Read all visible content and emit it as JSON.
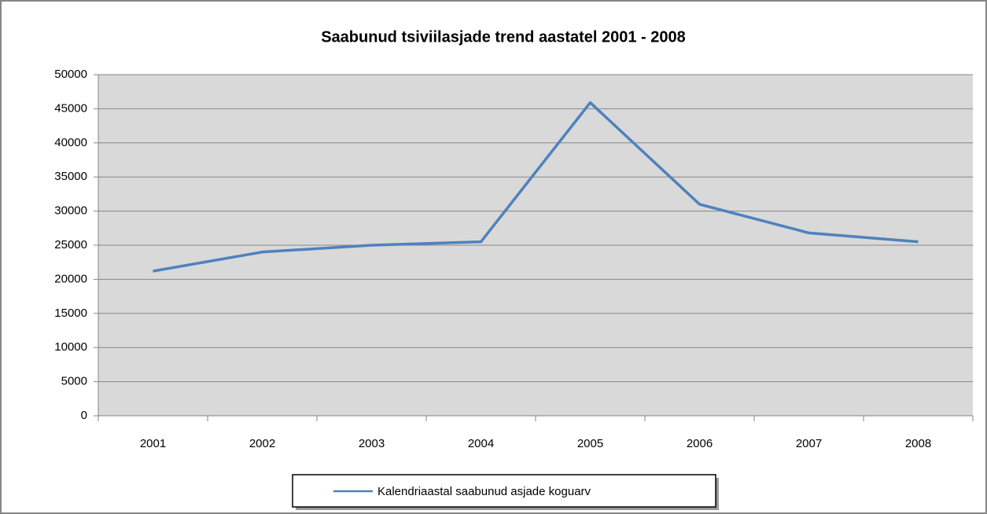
{
  "chart_data": {
    "type": "line",
    "title": "Saabunud tsiviilasjade trend aastatel 2001 - 2008",
    "categories": [
      "2001",
      "2002",
      "2003",
      "2004",
      "2005",
      "2006",
      "2007",
      "2008"
    ],
    "series": [
      {
        "name": "Kalendriaastal saabunud asjade koguarv",
        "color": "#4f81bd",
        "values": [
          21200,
          24000,
          25000,
          25500,
          45900,
          31000,
          26800,
          25500
        ]
      }
    ],
    "ylim": [
      0,
      50000
    ],
    "yticks": [
      0,
      5000,
      10000,
      15000,
      20000,
      25000,
      30000,
      35000,
      40000,
      45000,
      50000
    ],
    "grid": true,
    "legend": "bottom"
  }
}
